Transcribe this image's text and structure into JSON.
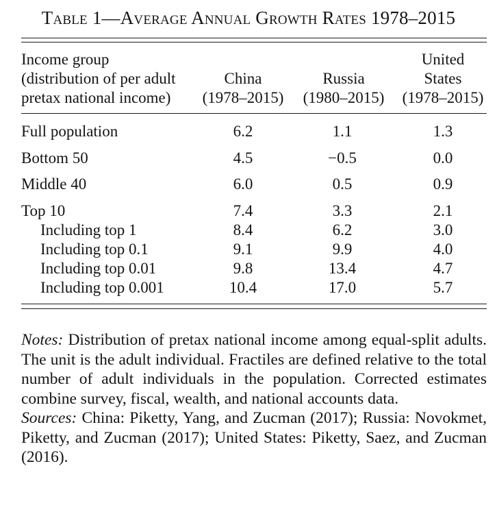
{
  "title": "Table 1—Average Annual Growth Rates 1978–2015",
  "header": {
    "income_group": [
      "Income group",
      "(distribution of per adult",
      "pretax national income)"
    ],
    "china": [
      "China",
      "(1978–2015)"
    ],
    "russia": [
      "Russia",
      "(1980–2015)"
    ],
    "us": [
      "United",
      "States",
      "(1978–2015)"
    ]
  },
  "rows": [
    {
      "label": "Full population",
      "china": "6.2",
      "russia": "1.1",
      "us": "1.3"
    },
    {
      "label": "Bottom 50",
      "china": "4.5",
      "russia": "−0.5",
      "us": "0.0"
    },
    {
      "label": "Middle 40",
      "china": "6.0",
      "russia": "0.5",
      "us": "0.9"
    },
    {
      "label": "Top 10",
      "china": "7.4",
      "russia": "3.3",
      "us": "2.1"
    },
    {
      "label": "Including top 1",
      "china": "8.4",
      "russia": "6.2",
      "us": "3.0"
    },
    {
      "label": "Including top 0.1",
      "china": "9.1",
      "russia": "9.9",
      "us": "4.0"
    },
    {
      "label": "Including top 0.01",
      "china": "9.8",
      "russia": "13.4",
      "us": "4.7"
    },
    {
      "label": "Including top 0.001",
      "china": "10.4",
      "russia": "17.0",
      "us": "5.7"
    }
  ],
  "notes": {
    "notes_label": "Notes:",
    "notes_text": " Distribution of pretax national income among equal-split adults. The unit is the adult individual. Fractiles are defined relative to the total number of adult individuals in the population. Corrected estimates combine survey, fiscal, wealth, and national accounts data.",
    "sources_label": "Sources:",
    "sources_text": " China: Piketty, Yang, and Zucman (2017); Russia: Novokmet, Piketty, and Zucman (2017); United States: Piketty, Saez, and Zucman (2016)."
  }
}
